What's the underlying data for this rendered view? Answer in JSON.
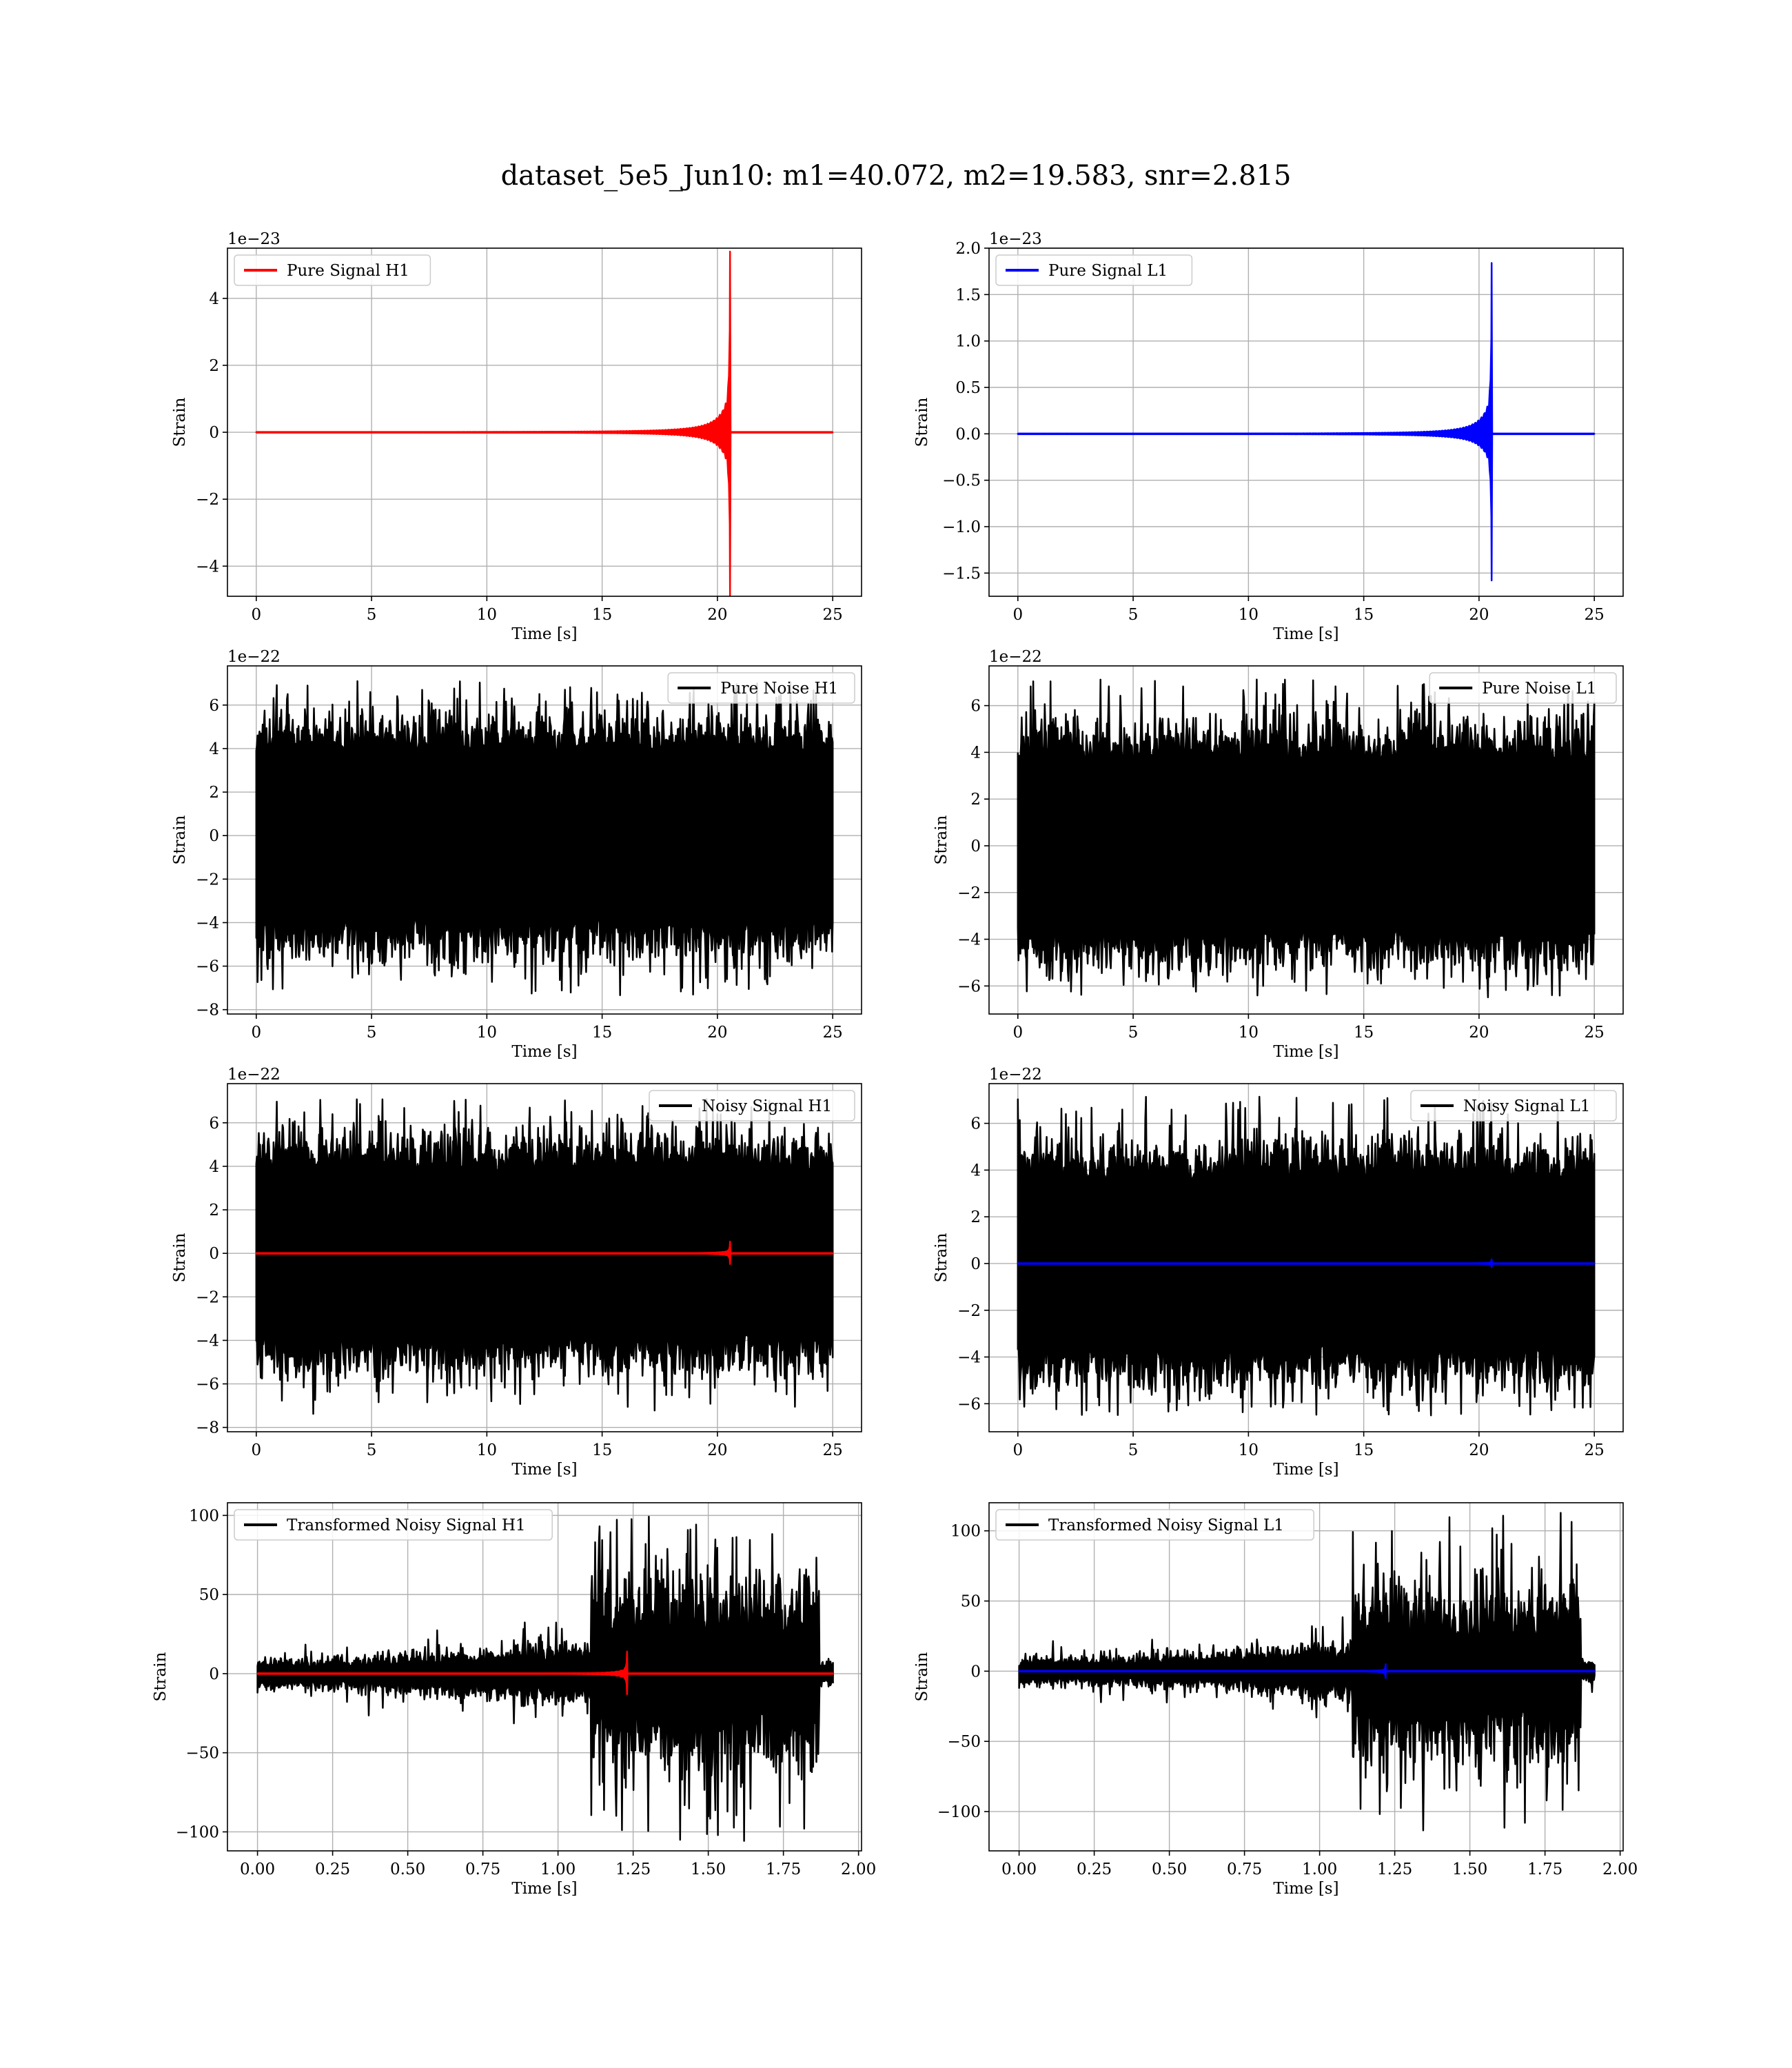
{
  "figure_title": "dataset_5e5_Jun10: m1=40.072, m2=19.583, snr=2.815",
  "colors": {
    "h1_signal": "#ff0000",
    "l1_signal": "#0000ff",
    "noise": "#000000"
  },
  "chart_data": [
    {
      "id": "pure-signal-h1",
      "type": "line",
      "xlabel": "Time [s]",
      "ylabel": "Strain",
      "offset_text": "1e−23",
      "xlim": [
        -1.25,
        26.25
      ],
      "ylim": [
        -4.9,
        5.5
      ],
      "xticks": [
        0,
        5,
        10,
        15,
        20,
        25
      ],
      "yticks": [
        -4,
        -2,
        0,
        2,
        4
      ],
      "ytick_labels": [
        "−4",
        "−2",
        "0",
        "2",
        "4"
      ],
      "legend_position": "upper-left",
      "series": [
        {
          "name": "Pure Signal H1",
          "color": "#ff0000",
          "kind": "chirp",
          "x_start": 0,
          "x_end": 25,
          "merger_time": 20.55,
          "peak": 5.4,
          "trough": -4.9
        }
      ]
    },
    {
      "id": "pure-signal-l1",
      "type": "line",
      "xlabel": "Time [s]",
      "ylabel": "Strain",
      "offset_text": "1e−23",
      "xlim": [
        -1.25,
        26.25
      ],
      "ylim": [
        -1.75,
        2.0
      ],
      "xticks": [
        0,
        5,
        10,
        15,
        20,
        25
      ],
      "yticks": [
        -1.5,
        -1.0,
        -0.5,
        0.0,
        0.5,
        1.0,
        1.5,
        2.0
      ],
      "ytick_labels": [
        "−1.5",
        "−1.0",
        "−0.5",
        "0.0",
        "0.5",
        "1.0",
        "1.5",
        "2.0"
      ],
      "legend_position": "upper-left",
      "series": [
        {
          "name": "Pure Signal L1",
          "color": "#0000ff",
          "kind": "chirp",
          "x_start": 0,
          "x_end": 25,
          "merger_time": 20.55,
          "peak": 1.84,
          "trough": -1.58
        }
      ]
    },
    {
      "id": "pure-noise-h1",
      "type": "line",
      "xlabel": "Time [s]",
      "ylabel": "Strain",
      "offset_text": "1e−22",
      "xlim": [
        -1.25,
        26.25
      ],
      "ylim": [
        -8.2,
        7.8
      ],
      "xticks": [
        0,
        5,
        10,
        15,
        20,
        25
      ],
      "yticks": [
        -8,
        -6,
        -4,
        -2,
        0,
        2,
        4,
        6
      ],
      "ytick_labels": [
        "−8",
        "−6",
        "−4",
        "−2",
        "0",
        "2",
        "4",
        "6"
      ],
      "legend_position": "upper-right",
      "series": [
        {
          "name": "Pure Noise H1",
          "color": "#000000",
          "kind": "noise",
          "x_start": 0,
          "x_end": 25,
          "core_band": 4.0,
          "max": 7.1,
          "min": -7.4
        }
      ]
    },
    {
      "id": "pure-noise-l1",
      "type": "line",
      "xlabel": "Time [s]",
      "ylabel": "Strain",
      "offset_text": "1e−22",
      "xlim": [
        -1.25,
        26.25
      ],
      "ylim": [
        -7.2,
        7.7
      ],
      "xticks": [
        0,
        5,
        10,
        15,
        20,
        25
      ],
      "yticks": [
        -6,
        -4,
        -2,
        0,
        2,
        4,
        6
      ],
      "ytick_labels": [
        "−6",
        "−4",
        "−2",
        "0",
        "2",
        "4",
        "6"
      ],
      "legend_position": "upper-right",
      "series": [
        {
          "name": "Pure Noise L1",
          "color": "#000000",
          "kind": "noise",
          "x_start": 0,
          "x_end": 25,
          "core_band": 3.8,
          "max": 7.2,
          "min": -6.5
        }
      ]
    },
    {
      "id": "noisy-signal-h1",
      "type": "line",
      "xlabel": "Time [s]",
      "ylabel": "Strain",
      "offset_text": "1e−22",
      "xlim": [
        -1.25,
        26.25
      ],
      "ylim": [
        -8.2,
        7.8
      ],
      "xticks": [
        0,
        5,
        10,
        15,
        20,
        25
      ],
      "yticks": [
        -8,
        -6,
        -4,
        -2,
        0,
        2,
        4,
        6
      ],
      "ytick_labels": [
        "−8",
        "−6",
        "−4",
        "−2",
        "0",
        "2",
        "4",
        "6"
      ],
      "legend_position": "upper-right",
      "series": [
        {
          "name": "Noisy Signal H1",
          "color": "#000000",
          "kind": "noise",
          "x_start": 0,
          "x_end": 25,
          "core_band": 4.0,
          "max": 7.1,
          "min": -7.4
        },
        {
          "color": "#ff0000",
          "kind": "chirp",
          "x_start": 0,
          "x_end": 25,
          "merger_time": 20.55,
          "peak": 0.54,
          "trough": -0.49
        }
      ]
    },
    {
      "id": "noisy-signal-l1",
      "type": "line",
      "xlabel": "Time [s]",
      "ylabel": "Strain",
      "offset_text": "1e−22",
      "xlim": [
        -1.25,
        26.25
      ],
      "ylim": [
        -7.2,
        7.7
      ],
      "xticks": [
        0,
        5,
        10,
        15,
        20,
        25
      ],
      "yticks": [
        -6,
        -4,
        -2,
        0,
        2,
        4,
        6
      ],
      "ytick_labels": [
        "−6",
        "−4",
        "−2",
        "0",
        "2",
        "4",
        "6"
      ],
      "legend_position": "upper-right",
      "series": [
        {
          "name": "Noisy Signal L1",
          "color": "#000000",
          "kind": "noise",
          "x_start": 0,
          "x_end": 25,
          "core_band": 3.8,
          "max": 7.2,
          "min": -6.5
        },
        {
          "color": "#0000ff",
          "kind": "chirp",
          "x_start": 0,
          "x_end": 25,
          "merger_time": 20.55,
          "peak": 0.184,
          "trough": -0.158
        }
      ]
    },
    {
      "id": "transformed-h1",
      "type": "line",
      "xlabel": "Time [s]",
      "ylabel": "Strain",
      "offset_text": "",
      "xlim": [
        -0.1,
        2.01
      ],
      "ylim": [
        -112,
        108
      ],
      "xticks": [
        0.0,
        0.25,
        0.5,
        0.75,
        1.0,
        1.25,
        1.5,
        1.75,
        2.0
      ],
      "yticks": [
        -100,
        -50,
        0,
        50,
        100
      ],
      "xtick_labels": [
        "0.00",
        "0.25",
        "0.50",
        "0.75",
        "1.00",
        "1.25",
        "1.50",
        "1.75",
        "2.00"
      ],
      "ytick_labels": [
        "−100",
        "−50",
        "0",
        "50",
        "100"
      ],
      "legend_position": "upper-left",
      "series": [
        {
          "name": "Transformed Noisy Signal H1",
          "color": "#000000",
          "kind": "whitened",
          "x_start": 0,
          "x_end": 1.915,
          "jump_time": 1.11,
          "cut_time": 1.87,
          "pre_band": 6,
          "post_band": 35,
          "max": 100,
          "min": -107
        },
        {
          "color": "#ff0000",
          "kind": "chirp",
          "x_start": 0,
          "x_end": 1.915,
          "merger_time": 1.23,
          "peak": 14,
          "trough": -13
        }
      ]
    },
    {
      "id": "transformed-l1",
      "type": "line",
      "xlabel": "Time [s]",
      "ylabel": "Strain",
      "offset_text": "",
      "xlim": [
        -0.1,
        2.01
      ],
      "ylim": [
        -128,
        120
      ],
      "xticks": [
        0.0,
        0.25,
        0.5,
        0.75,
        1.0,
        1.25,
        1.5,
        1.75,
        2.0
      ],
      "yticks": [
        -100,
        -50,
        0,
        50,
        100
      ],
      "xtick_labels": [
        "0.00",
        "0.25",
        "0.50",
        "0.75",
        "1.00",
        "1.25",
        "1.50",
        "1.75",
        "2.00"
      ],
      "ytick_labels": [
        "−100",
        "−50",
        "0",
        "50",
        "100"
      ],
      "legend_position": "upper-left",
      "series": [
        {
          "name": "Transformed Noisy Signal L1",
          "color": "#000000",
          "kind": "whitened",
          "x_start": 0,
          "x_end": 1.915,
          "jump_time": 1.11,
          "cut_time": 1.87,
          "pre_band": 6,
          "post_band": 35,
          "max": 115,
          "min": -118
        },
        {
          "color": "#0000ff",
          "kind": "chirp",
          "x_start": 0,
          "x_end": 1.915,
          "merger_time": 1.22,
          "peak": 5,
          "trough": -5
        }
      ]
    }
  ]
}
